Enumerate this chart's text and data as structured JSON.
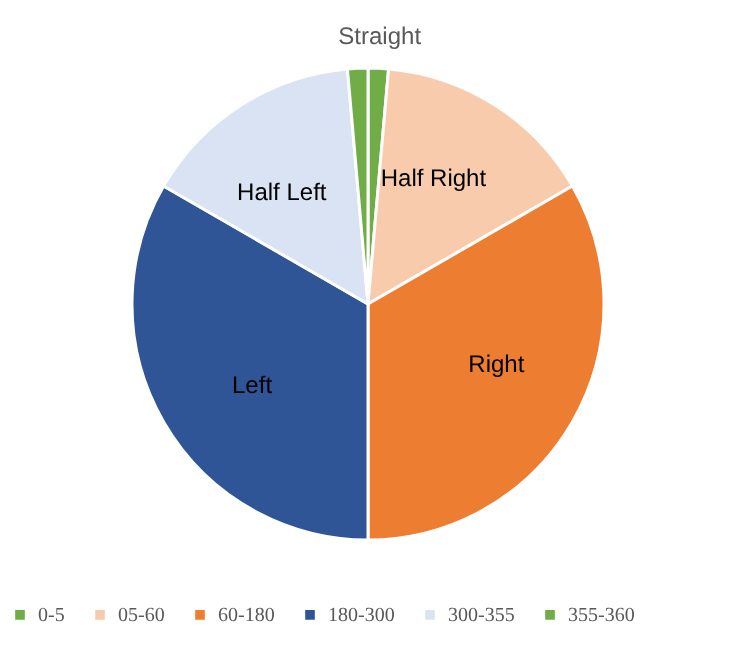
{
  "chart_data": {
    "type": "pie",
    "categories": [
      "0-5",
      "05-60",
      "60-180",
      "180-300",
      "300-355",
      "355-360"
    ],
    "values": [
      1.39,
      15.28,
      33.33,
      33.33,
      15.28,
      1.39
    ],
    "colors": [
      "#70ad47",
      "#f8cbad",
      "#ed7d31",
      "#2f5597",
      "#dae3f3",
      "#70ad47"
    ],
    "annotations": [
      {
        "text": "Straight",
        "x": "0-5"
      },
      {
        "text": "Half Right",
        "x": "05-60"
      },
      {
        "text": "Right",
        "x": "60-180"
      },
      {
        "text": "Left",
        "x": "180-300"
      },
      {
        "text": "Half Left",
        "x": "300-355"
      }
    ],
    "legend": "bottom"
  }
}
